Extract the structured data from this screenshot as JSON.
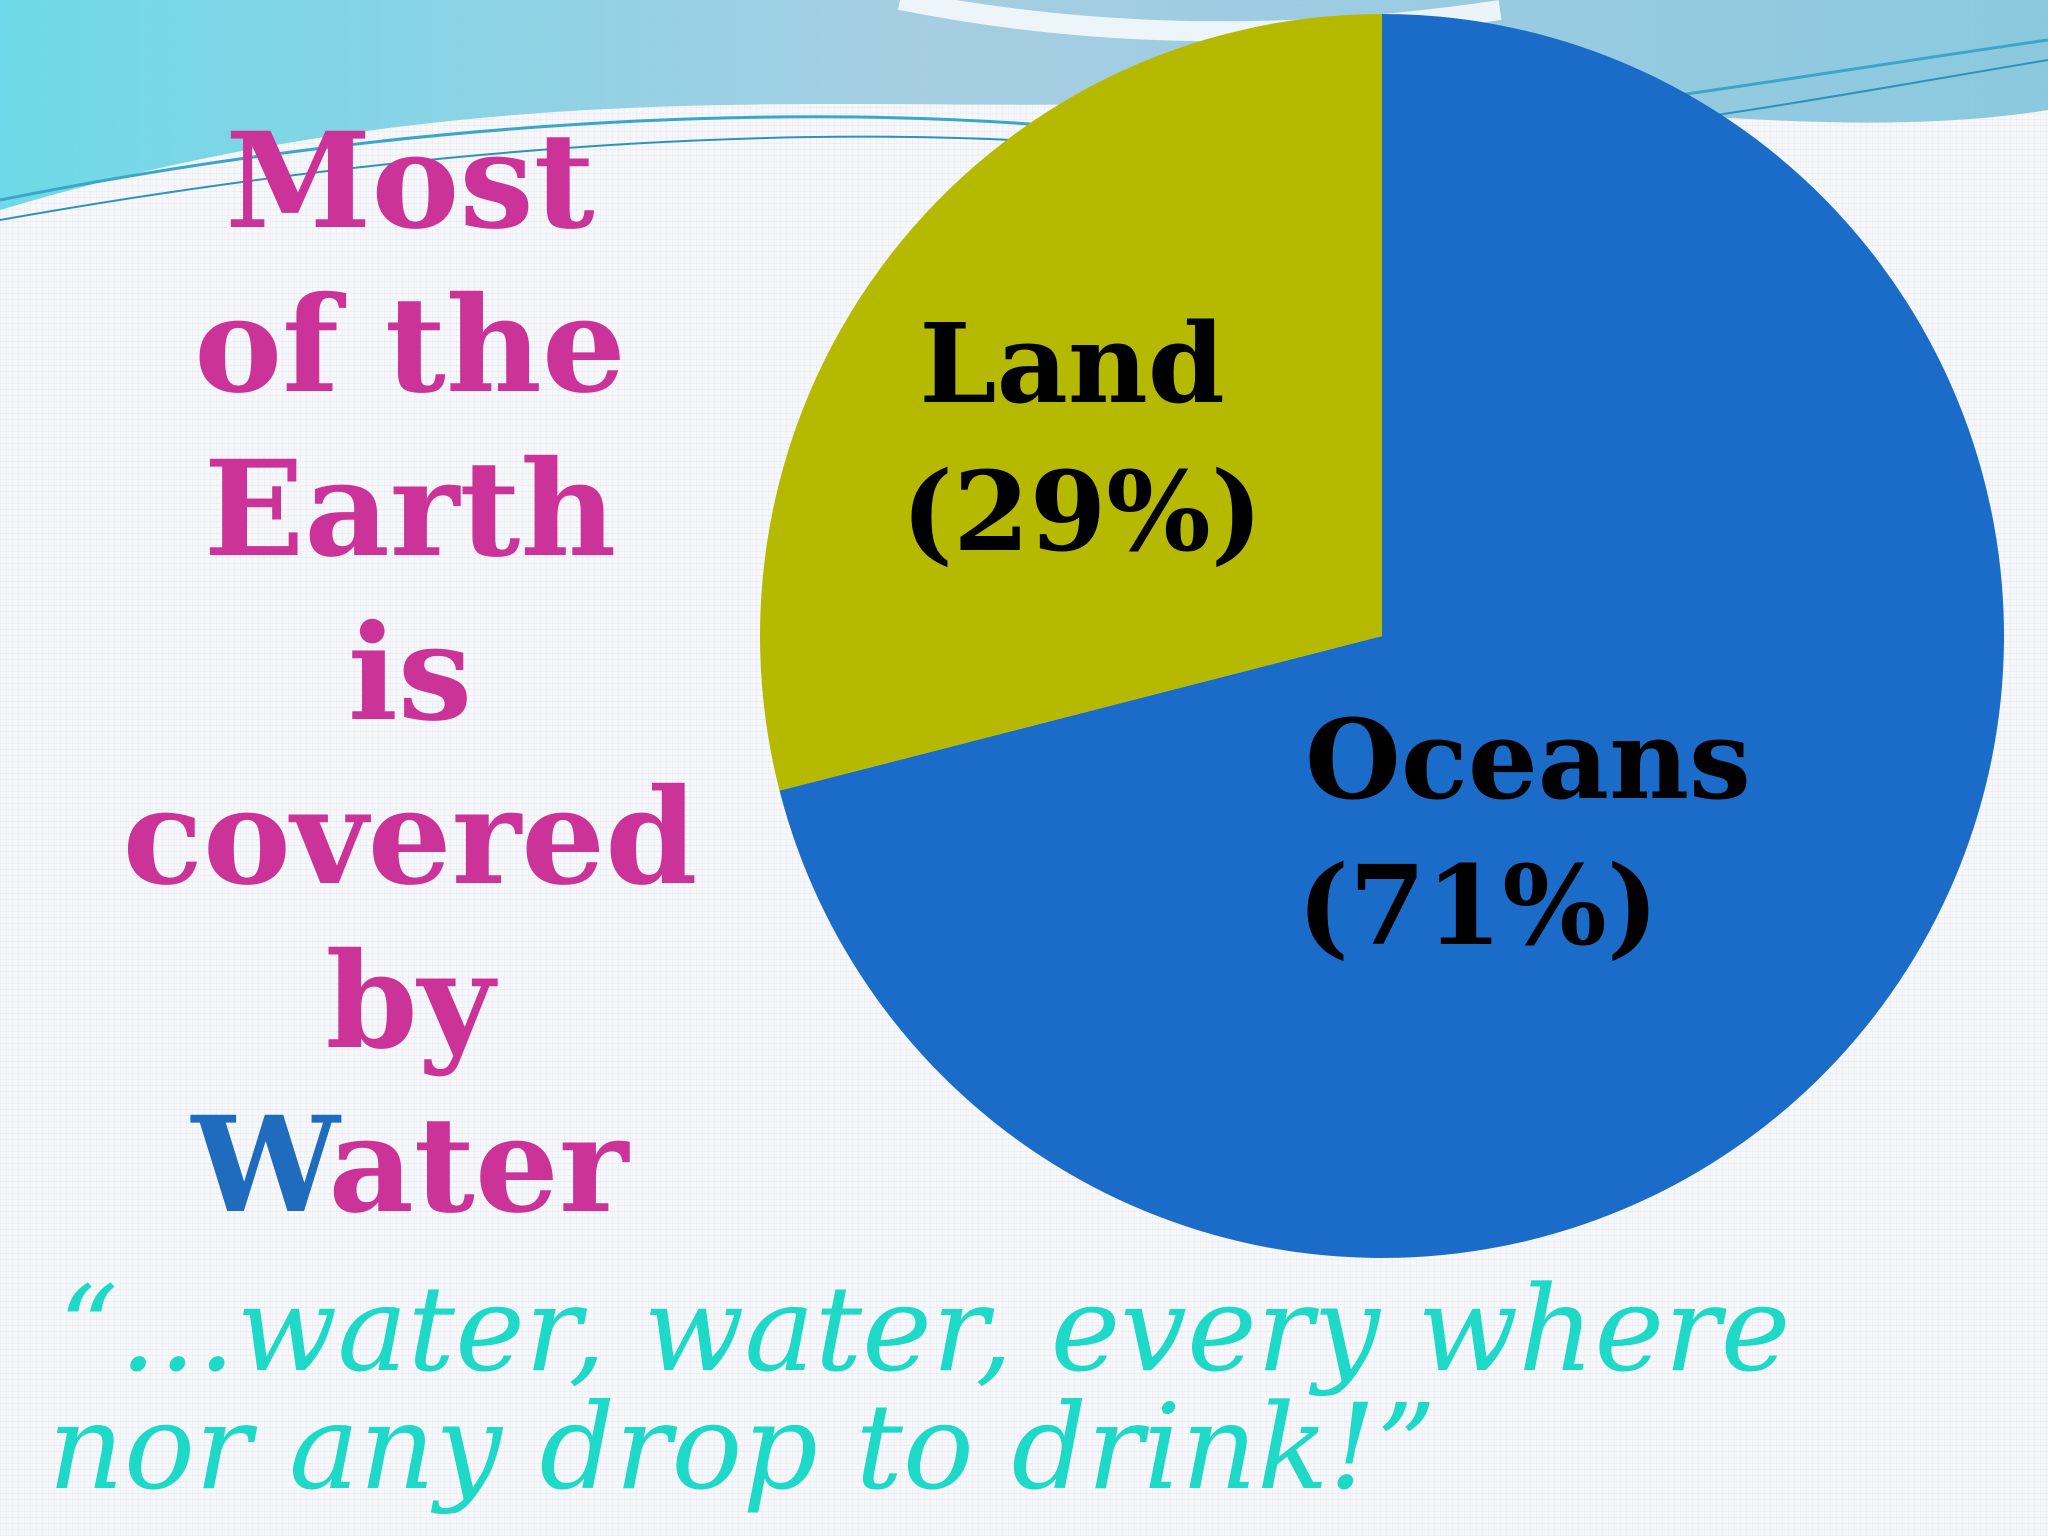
{
  "title": {
    "lines": [
      "Most",
      "of the",
      "Earth",
      "is",
      "covered",
      "by"
    ],
    "last_word_initial": "W",
    "last_word_rest": "ater"
  },
  "quote": {
    "line1": "“…water, water, every where",
    "line2": "nor any drop to drink!”"
  },
  "colors": {
    "title": "#cc3399",
    "water_initial": "#1f6cbf",
    "oceans": "#1a6cc8",
    "land": "#b5ba00",
    "quote": "#1ed8c8"
  },
  "chart_data": {
    "type": "pie",
    "slices": [
      {
        "name": "Oceans",
        "value": 71,
        "label_line1": "Oceans",
        "label_line2": "(71%)",
        "color": "#1a6cc8"
      },
      {
        "name": "Land",
        "value": 29,
        "label_line1": "Land",
        "label_line2": "(29%)",
        "color": "#b5ba00"
      }
    ],
    "start": "12 o'clock",
    "direction": "clockwise",
    "legend": "none"
  }
}
